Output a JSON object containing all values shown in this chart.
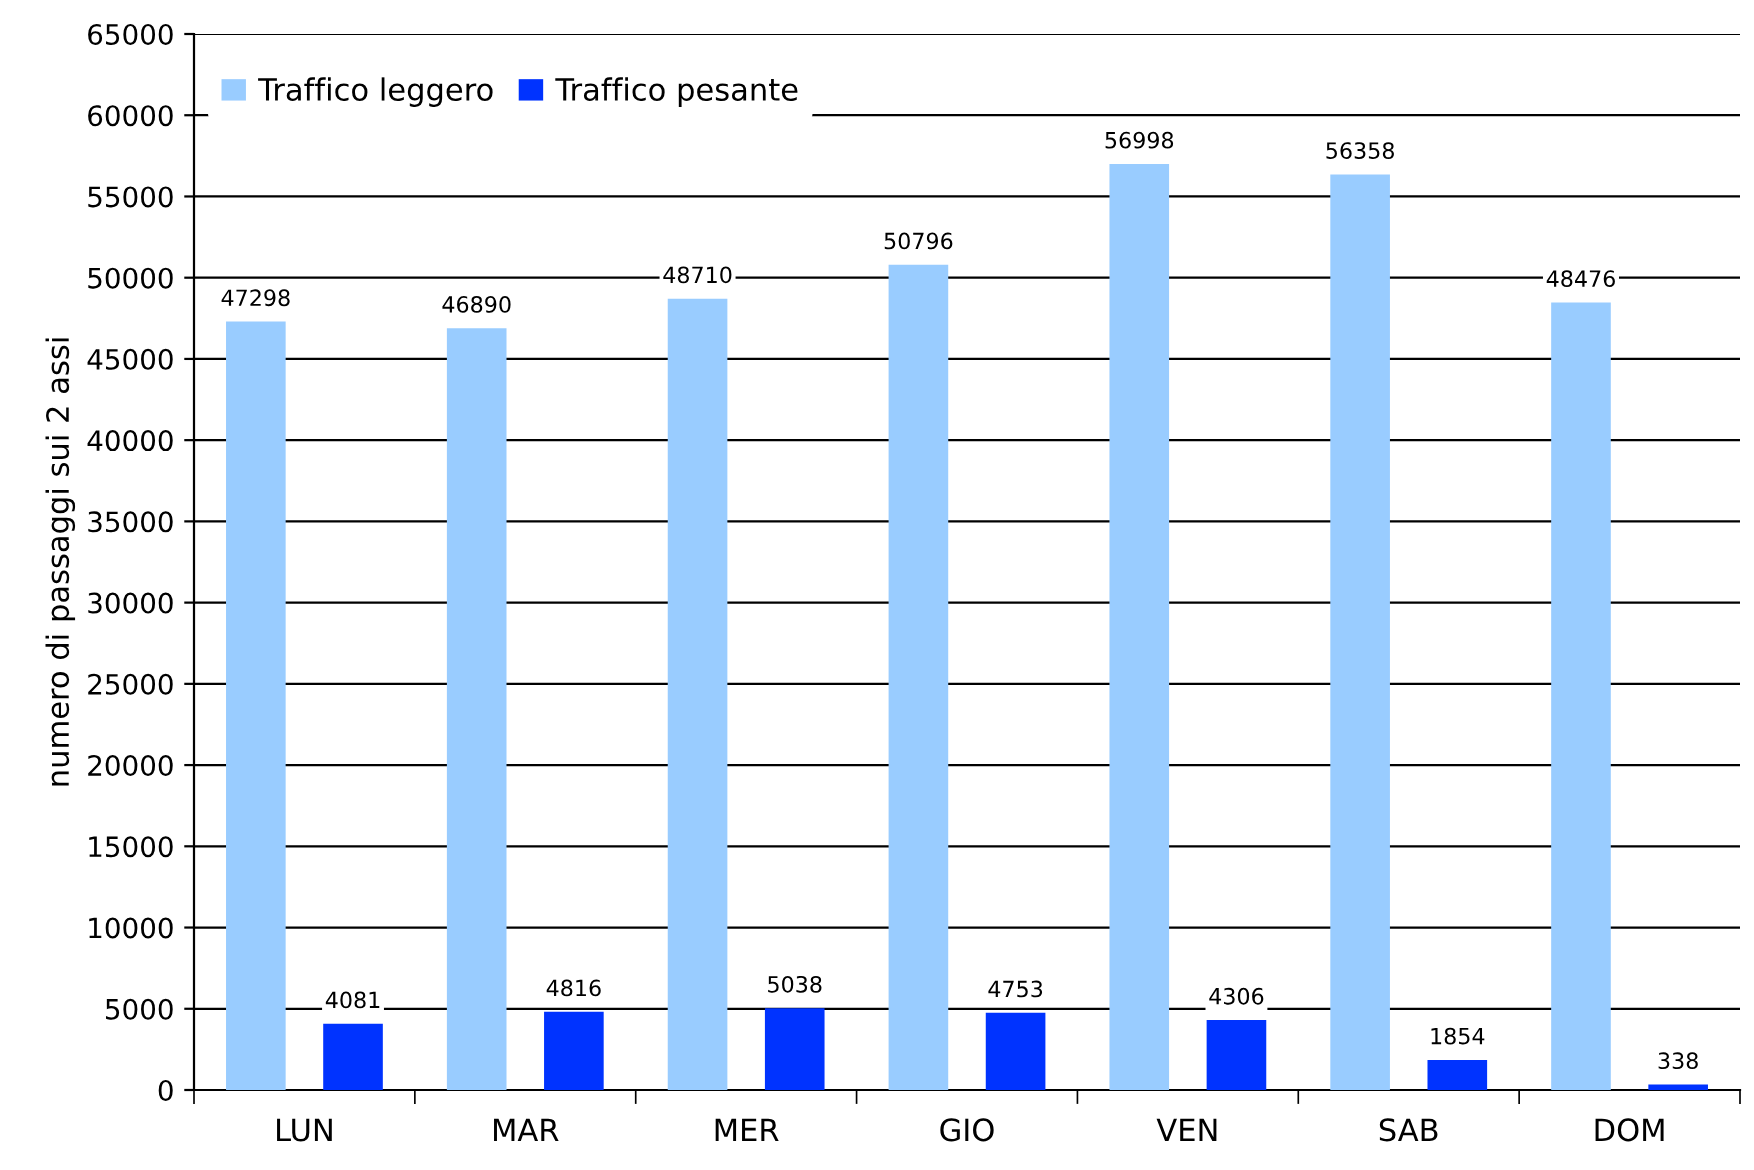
{
  "chart_data": {
    "type": "bar",
    "ylabel": "numero di passaggi sui 2 assi",
    "categories": [
      "LUN",
      "MAR",
      "MER",
      "GIO",
      "VEN",
      "SAB",
      "DOM"
    ],
    "series": [
      {
        "name": "Traffico leggero",
        "color": "#99ccff",
        "values": [
          47298,
          46890,
          48710,
          50796,
          56998,
          56358,
          48476
        ]
      },
      {
        "name": "Traffico pesante",
        "color": "#0033ff",
        "values": [
          4081,
          4816,
          5038,
          4753,
          4306,
          1854,
          338
        ]
      }
    ],
    "ylim": [
      0,
      65000
    ],
    "yticks": [
      0,
      5000,
      10000,
      15000,
      20000,
      25000,
      30000,
      35000,
      40000,
      45000,
      50000,
      55000,
      60000,
      65000
    ],
    "grid": "y",
    "legend": "top left",
    "data_labels": true
  }
}
